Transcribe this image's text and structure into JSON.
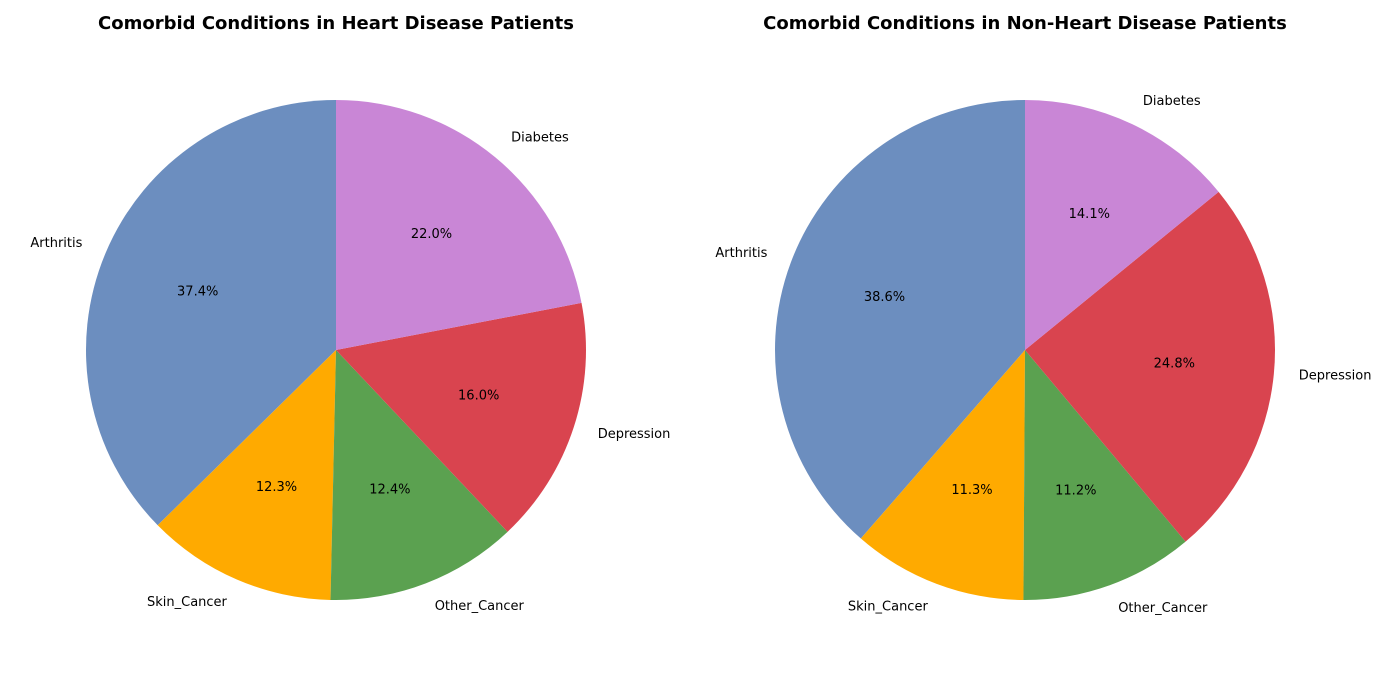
{
  "chart_data": [
    {
      "type": "pie",
      "title": "Comorbid Conditions in Heart Disease Patients",
      "start_angle_deg": 90,
      "direction": "counterclockwise",
      "slices": [
        {
          "label": "Arthritis",
          "value": 37.4,
          "display": "37.4%",
          "color": "#6c8ebf"
        },
        {
          "label": "Skin_Cancer",
          "value": 12.3,
          "display": "12.3%",
          "color": "#ffaa00"
        },
        {
          "label": "Other_Cancer",
          "value": 12.4,
          "display": "12.4%",
          "color": "#5ba150"
        },
        {
          "label": "Depression",
          "value": 16.0,
          "display": "16.0%",
          "color": "#d9444f"
        },
        {
          "label": "Diabetes",
          "value": 22.0,
          "display": "22.0%",
          "color": "#c986d6"
        }
      ]
    },
    {
      "type": "pie",
      "title": "Comorbid Conditions in Non-Heart Disease Patients",
      "start_angle_deg": 90,
      "direction": "counterclockwise",
      "slices": [
        {
          "label": "Arthritis",
          "value": 38.6,
          "display": "38.6%",
          "color": "#6c8ebf"
        },
        {
          "label": "Skin_Cancer",
          "value": 11.3,
          "display": "11.3%",
          "color": "#ffaa00"
        },
        {
          "label": "Other_Cancer",
          "value": 11.2,
          "display": "11.2%",
          "color": "#5ba150"
        },
        {
          "label": "Depression",
          "value": 24.8,
          "display": "24.8%",
          "color": "#d9444f"
        },
        {
          "label": "Diabetes",
          "value": 14.1,
          "display": "14.1%",
          "color": "#c986d6"
        }
      ]
    }
  ]
}
